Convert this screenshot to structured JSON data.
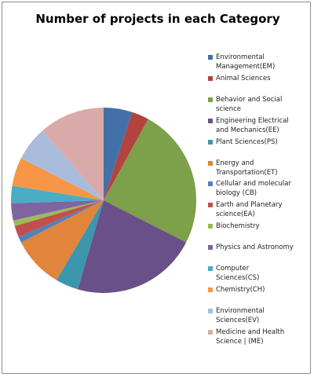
{
  "chart_data": {
    "type": "pie",
    "title": "Number of projects in each Category",
    "categories": [
      "Environmental Management(EM)",
      "Animal Sciences",
      "Behavior and Social science",
      "Engineering Electrical and Mechanics(EE)",
      "Plant Sciences(PS)",
      "Energy and Transportation(ET)",
      "Cellular and molecular biology (CB)",
      "Earth and Planetary science(EA)",
      "Biochemistry",
      "Physics and Astronomy",
      "Computer Sciences(CS)",
      "Chemistry(CH)",
      "Environmental Sciences(EV)",
      "Medicine and Health Science | (ME)"
    ],
    "values": [
      5,
      3,
      24.5,
      22,
      4,
      9,
      1,
      2,
      1,
      3,
      3,
      5,
      6,
      11.5
    ],
    "colors": [
      "#4470a8",
      "#b3433f",
      "#7da04a",
      "#6a5089",
      "#3b96ae",
      "#e0853b",
      "#4f81bd",
      "#c0504d",
      "#9bbb59",
      "#8064a2",
      "#4bacc6",
      "#f79646",
      "#a9bcdc",
      "#d9aaa9"
    ],
    "legend": "right"
  }
}
